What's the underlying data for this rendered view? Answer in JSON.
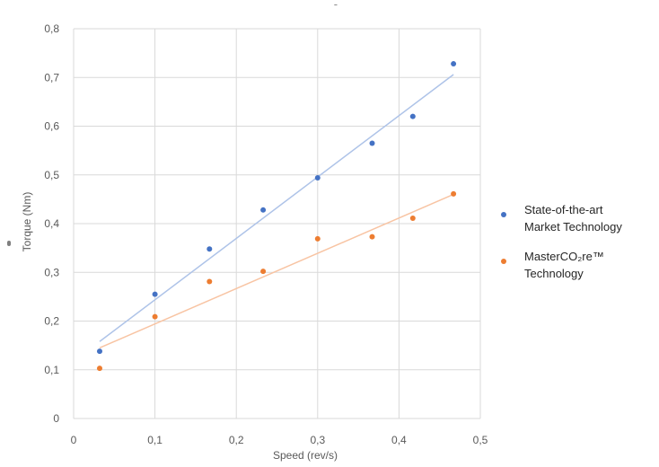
{
  "chart_data": {
    "type": "scatter",
    "title": "",
    "xlabel": "Speed (rev/s)",
    "ylabel": "Torque (Nm)",
    "xlim": [
      0,
      0.5
    ],
    "ylim": [
      0,
      0.8
    ],
    "x_ticks": [
      "0",
      "0,1",
      "0,2",
      "0,3",
      "0,4",
      "0,5"
    ],
    "y_ticks": [
      "0",
      "0,1",
      "0,2",
      "0,3",
      "0,4",
      "0,5",
      "0,6",
      "0,7",
      "0,8"
    ],
    "grid": "vertical and horizontal",
    "legend_position": "right",
    "series": [
      {
        "name_lines": [
          "State-of-the-art",
          "Market Technology"
        ],
        "color": "#4472c4",
        "trendline_color": "#aec3e8",
        "x": [
          0.032,
          0.1,
          0.167,
          0.233,
          0.3,
          0.367,
          0.417,
          0.467
        ],
        "y": [
          0.138,
          0.255,
          0.348,
          0.428,
          0.494,
          0.565,
          0.62,
          0.728
        ],
        "trendline": {
          "type": "linear",
          "x": [
            0.032,
            0.467
          ],
          "y": [
            0.158,
            0.706
          ]
        }
      },
      {
        "name_lines": [
          "MasterCO₂re™",
          "Technology"
        ],
        "color": "#ed7d31",
        "trendline_color": "#f8c4a3",
        "x": [
          0.032,
          0.1,
          0.167,
          0.233,
          0.3,
          0.367,
          0.417,
          0.467
        ],
        "y": [
          0.103,
          0.209,
          0.281,
          0.302,
          0.369,
          0.373,
          0.411,
          0.461
        ],
        "trendline": {
          "type": "linear",
          "x": [
            0.032,
            0.467
          ],
          "y": [
            0.145,
            0.46
          ]
        }
      }
    ]
  },
  "title_mark": "ˉ"
}
